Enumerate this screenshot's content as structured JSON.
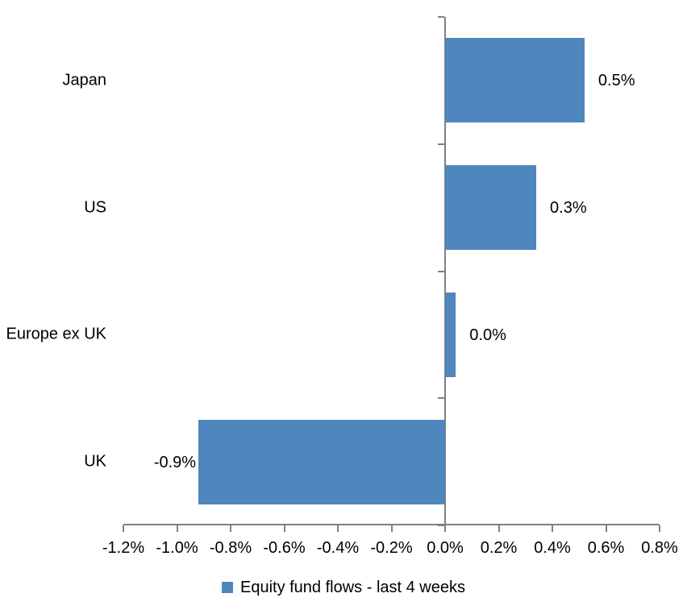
{
  "chart_data": {
    "type": "bar",
    "orientation": "horizontal",
    "categories": [
      "Japan",
      "US",
      "Europe ex UK",
      "UK"
    ],
    "values": [
      0.5,
      0.3,
      0.0,
      -0.9
    ],
    "bar_values": [
      0.52,
      0.34,
      0.04,
      -0.92
    ],
    "data_labels": [
      "0.5%",
      "0.3%",
      "0.0%",
      "-0.9%"
    ],
    "value_unit": "%",
    "x_ticks": [
      "-1.2%",
      "-1.0%",
      "-0.8%",
      "-0.6%",
      "-0.4%",
      "-0.2%",
      "0.0%",
      "0.2%",
      "0.4%",
      "0.6%",
      "0.8%"
    ],
    "x_tick_values": [
      -1.2,
      -1.0,
      -0.8,
      -0.6,
      -0.4,
      -0.2,
      0.0,
      0.2,
      0.4,
      0.6,
      0.8
    ],
    "xlim": [
      -1.2,
      0.8
    ],
    "grid": false,
    "legend": {
      "label": "Equity fund flows - last 4 weeks",
      "position": "bottom"
    },
    "bar_color": "#4E86BD",
    "axis_color": "#808080",
    "text_color": "#000000",
    "background": "#FFFFFF"
  }
}
